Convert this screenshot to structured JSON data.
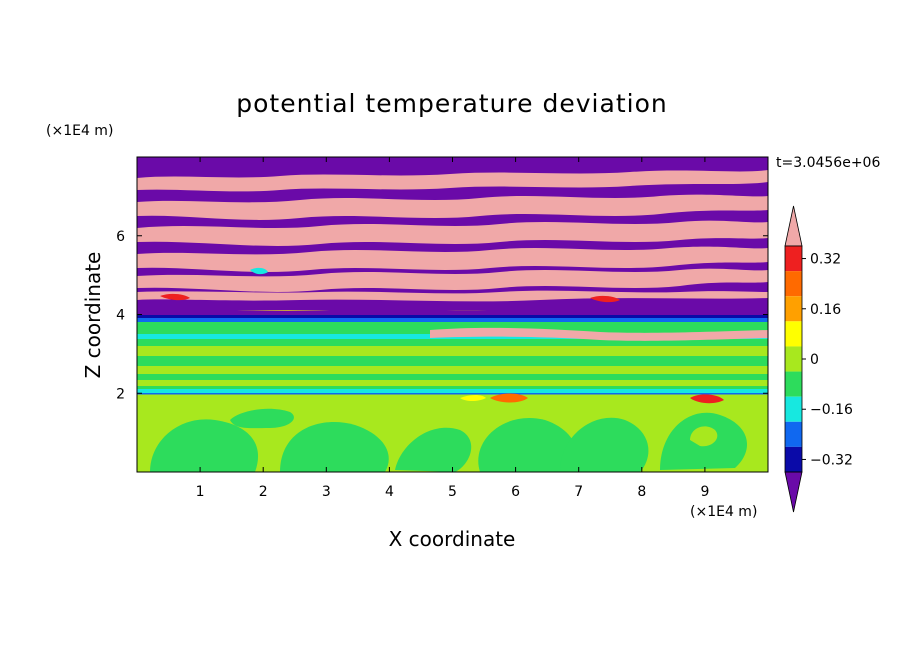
{
  "chart_data": {
    "type": "heatmap",
    "title": "potential temperature deviation",
    "xlabel": "X coordinate",
    "ylabel": "Z coordinate",
    "x_unit": "(×1E4 m)",
    "y_unit": "(×1E4 m)",
    "time_label": "t=3.0456e+06",
    "xlim": [
      0,
      10
    ],
    "ylim": [
      0,
      8
    ],
    "x_ticks": [
      1,
      2,
      3,
      4,
      5,
      6,
      7,
      8,
      9
    ],
    "y_ticks": [
      2,
      4,
      6
    ],
    "colorbar": {
      "tick_values": [
        0.32,
        0.16,
        0,
        -0.16,
        -0.32
      ],
      "tick_labels": [
        "0.32",
        "0.16",
        "0",
        "−0.16",
        "−0.32"
      ],
      "levels": [
        {
          "color": "#f0a8a8"
        },
        {
          "color": "#ee2020"
        },
        {
          "color": "#ff6a00"
        },
        {
          "color": "#ffa000"
        },
        {
          "color": "#ffff00"
        },
        {
          "color": "#a8e81e"
        },
        {
          "color": "#2ddc5c"
        },
        {
          "color": "#17e8e0"
        },
        {
          "color": "#1068f0"
        },
        {
          "color": "#0a0aa8"
        },
        {
          "color": "#6a0aa8"
        }
      ]
    }
  }
}
